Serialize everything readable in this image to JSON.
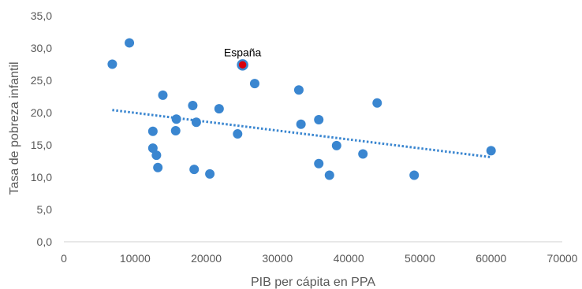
{
  "chart_data": {
    "type": "scatter",
    "xlabel": "PIB per cápita en PPA",
    "ylabel": "Tasa de pobreza infantil",
    "xlim": [
      0,
      70000
    ],
    "ylim": [
      0,
      35
    ],
    "x_ticks": [
      "0",
      "10000",
      "20000",
      "30000",
      "40000",
      "50000",
      "60000",
      "70000"
    ],
    "y_ticks": [
      "0,0",
      "5,0",
      "10,0",
      "15,0",
      "20,0",
      "25,0",
      "30,0",
      "35,0"
    ],
    "grid": false,
    "legend": "none",
    "colors": {
      "points": "#3a86d0",
      "highlight": "#d9000d",
      "trendline": "#3a86d0",
      "axis": "#d0d0d0"
    },
    "points": [
      {
        "x": 6800,
        "y": 27.5
      },
      {
        "x": 9200,
        "y": 30.8
      },
      {
        "x": 12500,
        "y": 17.1
      },
      {
        "x": 12500,
        "y": 14.5
      },
      {
        "x": 13000,
        "y": 13.4
      },
      {
        "x": 13200,
        "y": 11.5
      },
      {
        "x": 13900,
        "y": 22.7
      },
      {
        "x": 15700,
        "y": 17.2
      },
      {
        "x": 15800,
        "y": 19.0
      },
      {
        "x": 18100,
        "y": 21.1
      },
      {
        "x": 18300,
        "y": 11.2
      },
      {
        "x": 18600,
        "y": 18.5
      },
      {
        "x": 20500,
        "y": 10.5
      },
      {
        "x": 21800,
        "y": 20.6
      },
      {
        "x": 24400,
        "y": 16.7
      },
      {
        "x": 25100,
        "y": 27.4,
        "highlight": true
      },
      {
        "x": 26800,
        "y": 24.5
      },
      {
        "x": 33000,
        "y": 23.5
      },
      {
        "x": 33300,
        "y": 18.2
      },
      {
        "x": 35800,
        "y": 18.9
      },
      {
        "x": 35800,
        "y": 12.1
      },
      {
        "x": 37300,
        "y": 10.3
      },
      {
        "x": 38300,
        "y": 14.9
      },
      {
        "x": 42000,
        "y": 13.6
      },
      {
        "x": 44000,
        "y": 21.5
      },
      {
        "x": 49200,
        "y": 10.3
      },
      {
        "x": 60000,
        "y": 14.1
      }
    ],
    "trendline": {
      "style": "dotted",
      "x": [
        6800,
        60000
      ],
      "y": [
        20.4,
        13.1
      ]
    },
    "annotations": [
      {
        "text": "España",
        "x": 25100,
        "y": 27.4
      }
    ]
  }
}
